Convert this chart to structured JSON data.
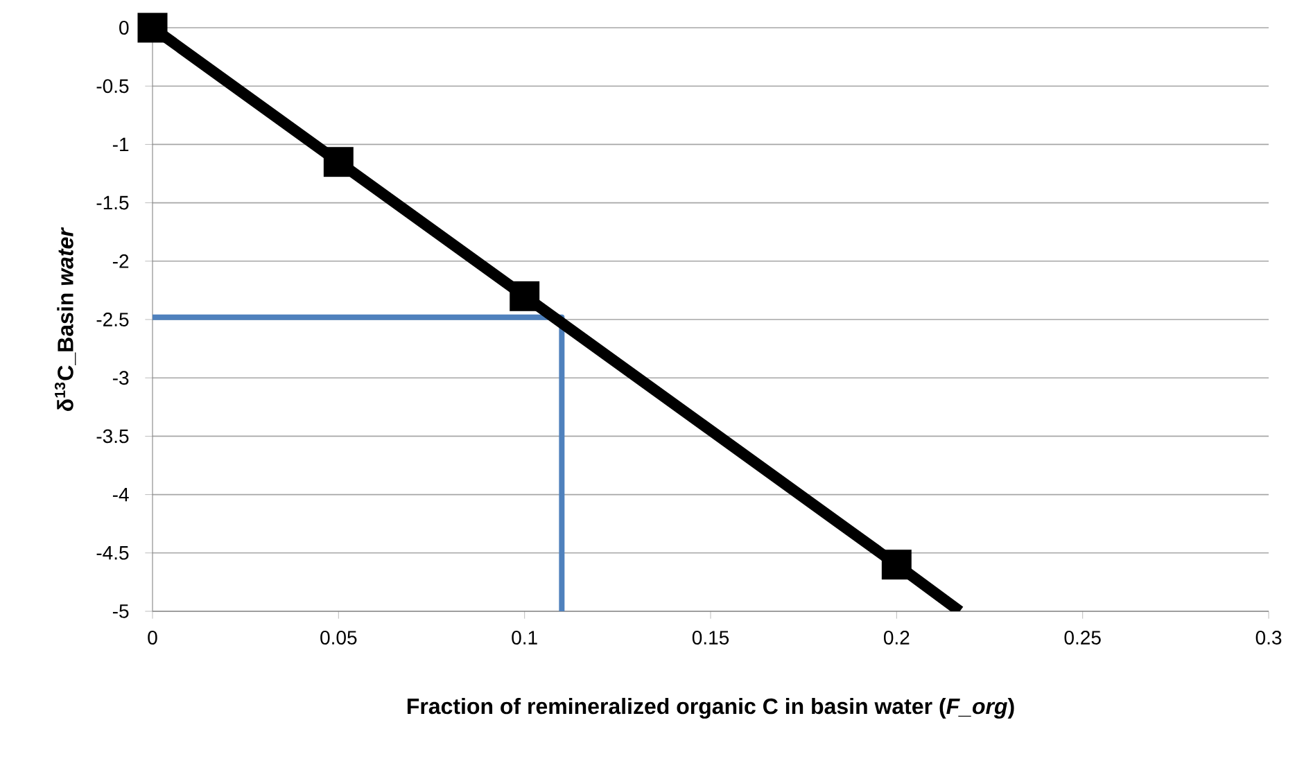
{
  "chart_data": {
    "type": "line",
    "xlabel": "Fraction of remineralized organic C in basin water (*F_org*)",
    "ylabel": "δ$^{13}$C_Basin *water*",
    "xlim": [
      0,
      0.3
    ],
    "xticks": [
      0,
      0.05,
      0.1,
      0.15,
      0.2,
      0.25,
      0.3
    ],
    "ylim": [
      -5,
      0
    ],
    "yticks": [
      0,
      -0.5,
      -1,
      -1.5,
      -2,
      -2.5,
      -3,
      -3.5,
      -4,
      -4.5,
      -5
    ],
    "grid": "y",
    "series": [
      {
        "color": "#4f81bd",
        "x": [
          0,
          0.11,
          0.11
        ],
        "values": [
          -2.48,
          -2.48,
          -5
        ],
        "marker": "none"
      },
      {
        "color": "#000000",
        "x": [
          0.2,
          0.217
        ],
        "values": [
          -4.6,
          -5
        ]
      },
      {
        "color": "#000000",
        "x": [
          0,
          0.05,
          0.1,
          0.2
        ],
        "values": [
          0,
          -1.15,
          -2.3,
          -4.6
        ],
        "marker": "square"
      }
    ]
  }
}
